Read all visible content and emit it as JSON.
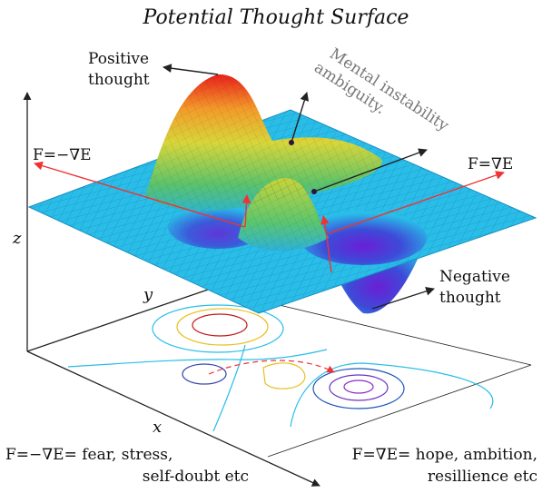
{
  "title": "Potential Thought Surface",
  "labels": {
    "positive": [
      "Positive",
      "thought"
    ],
    "mental": [
      "Mental instability",
      "ambiguity."
    ],
    "force_left": "F=−∇E",
    "force_right": "F=∇E",
    "negative": [
      "Negative",
      "thought"
    ]
  },
  "axes": {
    "x": "x",
    "y": "y",
    "z": "z"
  },
  "captions": {
    "left": [
      "F=−∇E= fear, stress,",
      "self-doubt etc"
    ],
    "right": [
      "F=∇E= hope, ambition,",
      "resillience etc"
    ]
  }
}
